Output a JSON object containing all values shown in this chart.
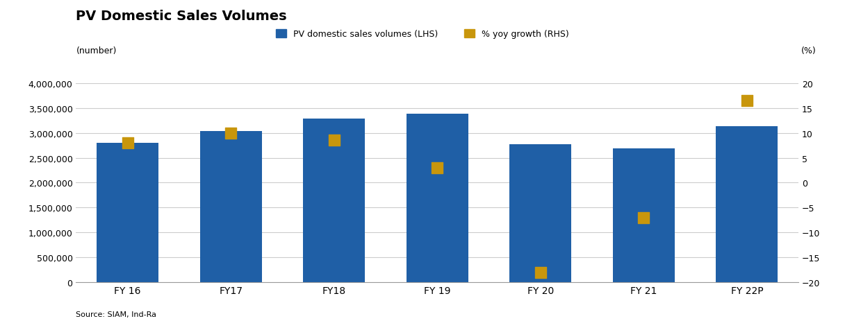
{
  "title": "PV Domestic Sales Volumes",
  "categories": [
    "FY 16",
    "FY17",
    "FY18",
    "FY 19",
    "FY 20",
    "FY 21",
    "FY 22P"
  ],
  "bar_values": [
    2800000,
    3040000,
    3290000,
    3380000,
    2770000,
    2690000,
    3130000
  ],
  "yoy_values": [
    8.0,
    10.0,
    8.5,
    3.0,
    -18.0,
    -7.0,
    16.5
  ],
  "bar_color": "#1F5FA6",
  "yoy_color": "#C8960C",
  "lhs_ylim": [
    0,
    4000000
  ],
  "lhs_yticks": [
    0,
    500000,
    1000000,
    1500000,
    2000000,
    2500000,
    3000000,
    3500000,
    4000000
  ],
  "rhs_ylim": [
    -20,
    20
  ],
  "rhs_yticks": [
    -20,
    -15,
    -10,
    -5,
    0,
    5,
    10,
    15,
    20
  ],
  "lhs_label": "(number)",
  "rhs_label": "(%)",
  "legend_bar": "PV domestic sales volumes (LHS)",
  "legend_scatter": "% yoy growth (RHS)",
  "source": "Source: SIAM, Ind-Ra",
  "background_color": "#ffffff",
  "grid_color": "#cccccc",
  "title_fontsize": 14,
  "axis_fontsize": 9,
  "tick_fontsize": 9
}
